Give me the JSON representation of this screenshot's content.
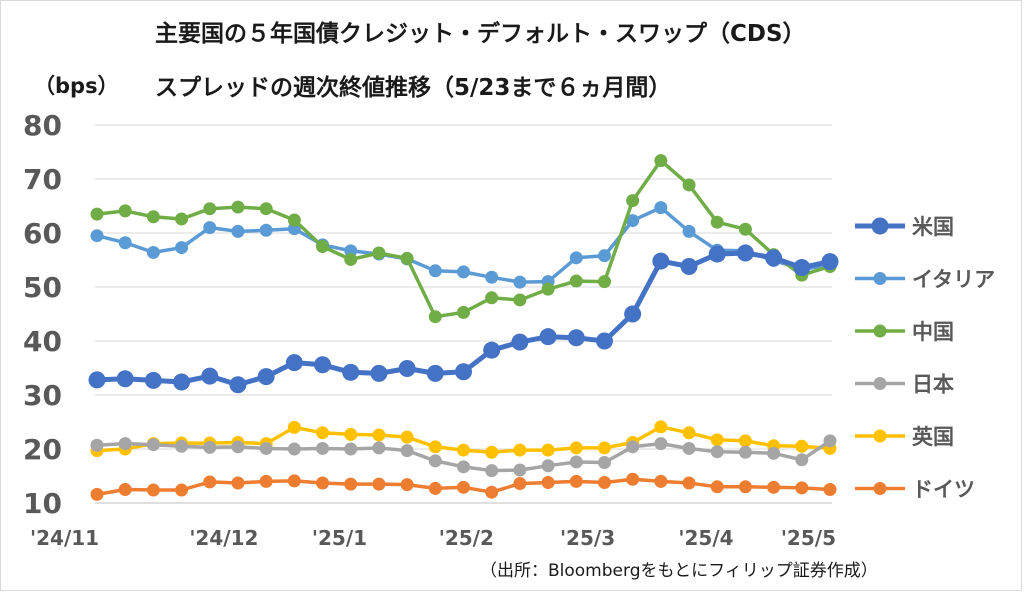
{
  "chart_data": {
    "type": "line",
    "title_line1": "主要国の５年国債クレジット・デフォルト・スワップ（CDS）",
    "title_line2": "スプレッドの週次終値推移（5/23まで６ヵ月間）",
    "ylabel": "（bps）",
    "source_note": "（出所：Bloombergをもとにフィリップ証券作成）",
    "ylim": [
      10,
      80
    ],
    "y_ticks": [
      10,
      20,
      30,
      40,
      50,
      60,
      70,
      80
    ],
    "x_labels": [
      "'24/11",
      "'24/12",
      "'25/1",
      "'25/2",
      "'25/3",
      "'25/4",
      "'25/5"
    ],
    "grid": true,
    "legend_position": "right",
    "series": [
      {
        "name": "米国",
        "color": "#4472C4",
        "values": [
          32.8,
          33.0,
          32.7,
          32.4,
          33.5,
          31.9,
          33.4,
          36.0,
          35.6,
          34.2,
          34.0,
          34.9,
          34.0,
          34.3,
          38.3,
          39.8,
          40.8,
          40.6,
          40.0,
          45.0,
          54.8,
          53.8,
          56.1,
          56.3,
          55.4,
          53.6,
          54.7
        ]
      },
      {
        "name": "イタリア",
        "color": "#5B9BD5",
        "values": [
          59.5,
          58.2,
          56.4,
          57.3,
          61.0,
          60.3,
          60.5,
          60.8,
          57.8,
          56.7,
          56.1,
          55.2,
          53.0,
          52.8,
          51.8,
          50.9,
          51.0,
          55.4,
          55.8,
          62.3,
          64.7,
          60.3,
          56.8,
          56.7,
          54.9,
          53.3,
          54.0
        ]
      },
      {
        "name": "中国",
        "color": "#70AD47",
        "values": [
          63.5,
          64.1,
          63.0,
          62.6,
          64.5,
          64.8,
          64.5,
          62.4,
          57.5,
          55.1,
          56.3,
          55.3,
          44.5,
          45.3,
          48.0,
          47.6,
          49.6,
          51.1,
          51.0,
          66.0,
          73.4,
          68.9,
          62.0,
          60.7,
          56.0,
          52.2,
          53.8
        ]
      },
      {
        "name": "日本",
        "color": "#A5A5A5",
        "values": [
          20.7,
          21.0,
          20.8,
          20.5,
          20.3,
          20.4,
          20.1,
          20.0,
          20.1,
          20.0,
          20.2,
          19.7,
          17.8,
          16.7,
          16.0,
          16.1,
          16.9,
          17.6,
          17.5,
          20.4,
          21.0,
          20.1,
          19.5,
          19.4,
          19.2,
          18.0,
          21.5
        ]
      },
      {
        "name": "英国",
        "color": "#FFC000",
        "values": [
          19.7,
          20.0,
          21.0,
          21.1,
          21.1,
          21.2,
          21.0,
          24.0,
          23.0,
          22.7,
          22.6,
          22.2,
          20.4,
          19.8,
          19.4,
          19.8,
          19.8,
          20.2,
          20.2,
          21.2,
          24.1,
          23.0,
          21.7,
          21.5,
          20.6,
          20.5,
          20.1
        ]
      },
      {
        "name": "ドイツ",
        "color": "#ED7D31",
        "values": [
          11.6,
          12.5,
          12.4,
          12.4,
          13.9,
          13.7,
          14.0,
          14.1,
          13.7,
          13.5,
          13.5,
          13.4,
          12.7,
          12.9,
          12.0,
          13.6,
          13.8,
          14.0,
          13.8,
          14.4,
          14.0,
          13.7,
          13.0,
          13.0,
          12.9,
          12.8,
          12.5
        ]
      }
    ]
  }
}
